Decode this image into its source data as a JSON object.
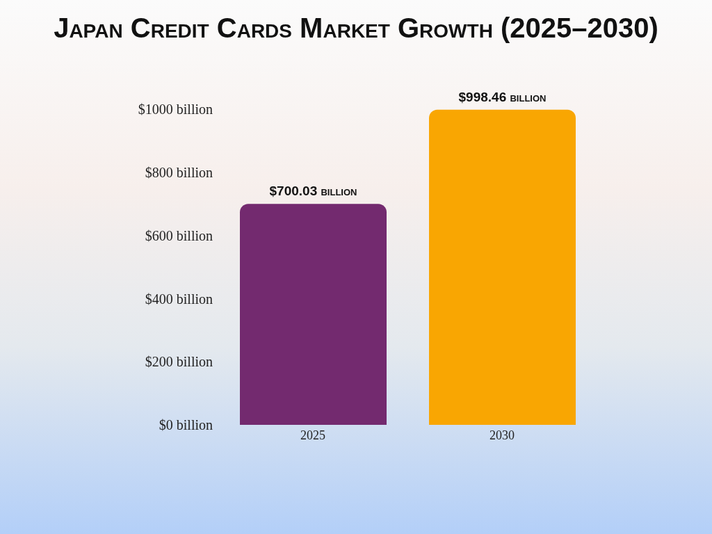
{
  "chart_data": {
    "type": "bar",
    "title": "Japan Credit Cards Market Growth (2025–2030)",
    "categories": [
      "2025",
      "2030"
    ],
    "values": [
      700.03,
      998.46
    ],
    "colors": [
      "#732a6f",
      "#f9a602"
    ],
    "value_labels": [
      "$700.03 billion",
      "$998.46 billion"
    ],
    "ylim": [
      0,
      1000
    ],
    "yticks": [
      {
        "value": 0,
        "label": "$0 billion"
      },
      {
        "value": 200,
        "label": "$200 billion"
      },
      {
        "value": 400,
        "label": "$400 billion"
      },
      {
        "value": 600,
        "label": "$600 billion"
      },
      {
        "value": 800,
        "label": "$800 billion"
      },
      {
        "value": 1000,
        "label": "$1000 billion"
      }
    ]
  }
}
